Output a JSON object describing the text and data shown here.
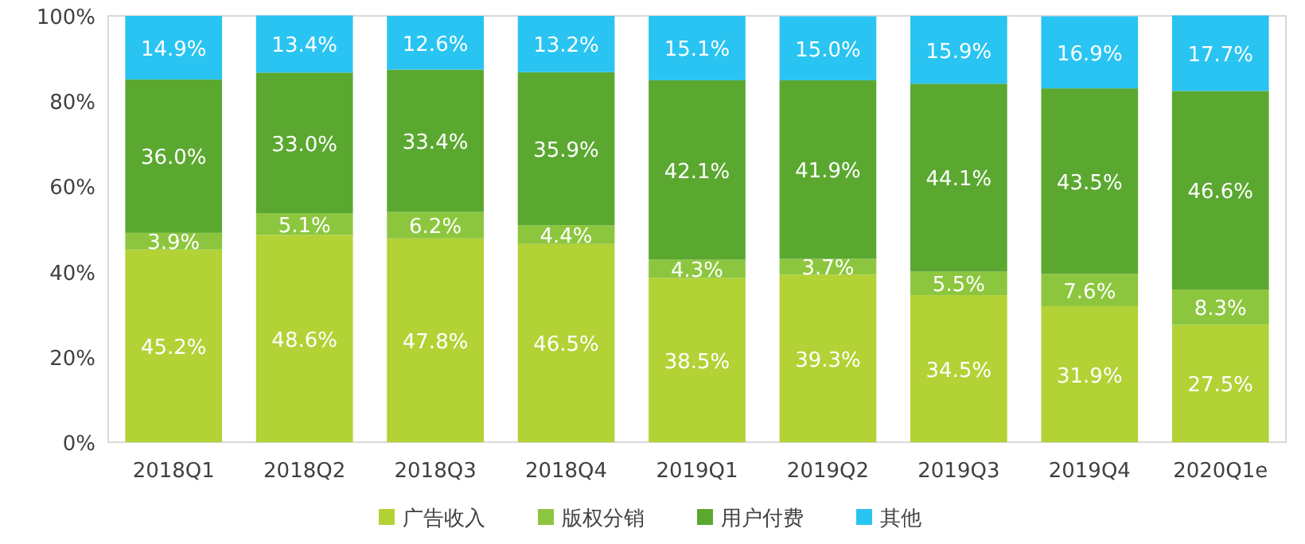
{
  "chart_data": {
    "type": "bar",
    "stacked": true,
    "categories": [
      "2018Q1",
      "2018Q2",
      "2018Q3",
      "2018Q4",
      "2019Q1",
      "2019Q2",
      "2019Q3",
      "2019Q4",
      "2020Q1e"
    ],
    "series": [
      {
        "name": "广告收入",
        "color": "#b2d235",
        "values": [
          45.2,
          48.6,
          47.8,
          46.5,
          38.5,
          39.3,
          34.5,
          31.9,
          27.5
        ],
        "value_labels": [
          "45.2%",
          "48.6%",
          "47.8%",
          "46.5%",
          "38.5%",
          "39.3%",
          "34.5%",
          "31.9%",
          "27.5%"
        ]
      },
      {
        "name": "版权分销",
        "color": "#8cc63e",
        "values": [
          3.9,
          5.1,
          6.2,
          4.4,
          4.3,
          3.7,
          5.5,
          7.6,
          8.3
        ],
        "value_labels": [
          "3.9%",
          "5.1%",
          "6.2%",
          "4.4%",
          "4.3%",
          "3.7%",
          "5.5%",
          "7.6%",
          "8.3%"
        ]
      },
      {
        "name": "用户付费",
        "color": "#5ba831",
        "values": [
          36.0,
          33.0,
          33.4,
          35.9,
          42.1,
          41.9,
          44.1,
          43.5,
          46.6
        ],
        "value_labels": [
          "36.0%",
          "33.0%",
          "33.4%",
          "35.9%",
          "42.1%",
          "41.9%",
          "44.1%",
          "43.5%",
          "46.6%"
        ]
      },
      {
        "name": "其他",
        "color": "#29c4f2",
        "values": [
          14.9,
          13.4,
          12.6,
          13.2,
          15.1,
          15.0,
          15.9,
          16.9,
          17.7
        ],
        "value_labels": [
          "14.9%",
          "13.4%",
          "12.6%",
          "13.2%",
          "15.1%",
          "15.0%",
          "15.9%",
          "16.9%",
          "17.7%"
        ]
      }
    ],
    "ylim": [
      0,
      100
    ],
    "yticks": [
      {
        "value": 0,
        "label": "0%"
      },
      {
        "value": 20,
        "label": "20%"
      },
      {
        "value": 40,
        "label": "40%"
      },
      {
        "value": 60,
        "label": "60%"
      },
      {
        "value": 80,
        "label": "80%"
      },
      {
        "value": 100,
        "label": "100%"
      }
    ],
    "legend": "bottom"
  }
}
